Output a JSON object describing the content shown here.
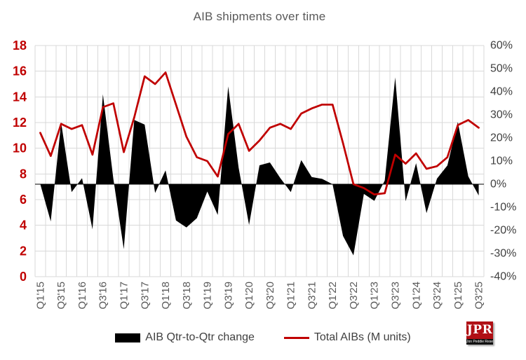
{
  "title": "AIB shipments over time",
  "legend": {
    "area_label": "AIB Qtr-to-Qtr change",
    "line_label": "Total AIBs (M units)"
  },
  "logo": {
    "text": "JPR",
    "subtext": "Jon Peddie Research"
  },
  "colors": {
    "line": "#c00000",
    "area": "#000000",
    "gridline": "#d9d9d9",
    "zero_axis": "#000000",
    "left_axis_text": "#c00000",
    "right_axis_text": "#404040",
    "x_axis_text": "#595959",
    "title_text": "#595959",
    "logo_red": "#b01015"
  },
  "chart_data": {
    "type": "combo",
    "title": "AIB shipments over time",
    "categories": [
      "Q1'15",
      "Q2'15",
      "Q3'15",
      "Q4'15",
      "Q1'16",
      "Q2'16",
      "Q3'16",
      "Q4'16",
      "Q1'17",
      "Q2'17",
      "Q3'17",
      "Q4'17",
      "Q1'18",
      "Q2'18",
      "Q3'18",
      "Q4'18",
      "Q1'19",
      "Q2'19",
      "Q3'19",
      "Q4'19",
      "Q1'20",
      "Q2'20",
      "Q3'20",
      "Q4'20",
      "Q1'21",
      "Q2'21",
      "Q3'21",
      "Q4'21",
      "Q1'22",
      "Q2'22",
      "Q3'22",
      "Q4'22",
      "Q1'23",
      "Q2'23",
      "Q3'23",
      "Q4'23",
      "Q1'24",
      "Q2'24",
      "Q3'24",
      "Q4'24",
      "Q1'25",
      "Q2'25",
      "Q3'25"
    ],
    "x_tick_labels": [
      "Q1'15",
      "Q3'15",
      "Q1'16",
      "Q3'16",
      "Q1'17",
      "Q3'17",
      "Q1'18",
      "Q3'18",
      "Q1'19",
      "Q3'19",
      "Q1'20",
      "Q3'20",
      "Q1'21",
      "Q3'21",
      "Q1'22",
      "Q3'22",
      "Q1'23",
      "Q3'23",
      "Q1'24",
      "Q3'24",
      "Q1'25",
      "Q3'25"
    ],
    "x_tick_every": 2,
    "series": [
      {
        "name": "AIB Qtr-to-Qtr change",
        "type": "area",
        "axis": "right",
        "unit": "%",
        "values": [
          0.0,
          -16.1,
          26.6,
          -3.4,
          2.6,
          -19.5,
          38.9,
          2.3,
          -28.1,
          27.8,
          25.8,
          -3.8,
          6.0,
          -15.7,
          -18.7,
          -14.7,
          -3.2,
          -13.3,
          42.3,
          7.2,
          -17.6,
          8.2,
          9.4,
          2.6,
          -3.4,
          10.4,
          3.1,
          2.3,
          0.0,
          -22.4,
          -30.8,
          -4.2,
          -7.2,
          1.6,
          46.2,
          -7.4,
          9.1,
          -12.5,
          2.4,
          8.1,
          26.9,
          3.4,
          -4.9
        ]
      },
      {
        "name": "Total AIBs (M units)",
        "type": "line",
        "axis": "left",
        "unit": "M units",
        "values": [
          11.2,
          9.4,
          11.9,
          11.5,
          11.8,
          9.5,
          13.2,
          13.5,
          9.7,
          12.4,
          15.6,
          15.0,
          15.9,
          13.4,
          10.9,
          9.3,
          9.0,
          7.8,
          11.1,
          11.9,
          9.8,
          10.6,
          11.6,
          11.9,
          11.5,
          12.7,
          13.1,
          13.4,
          13.4,
          10.4,
          7.2,
          6.9,
          6.4,
          6.5,
          9.5,
          8.8,
          9.6,
          8.4,
          8.6,
          9.3,
          11.8,
          12.2,
          11.6
        ]
      }
    ],
    "left_axis": {
      "min": 0,
      "max": 18,
      "step": 2,
      "ticks": [
        "0",
        "2",
        "4",
        "6",
        "8",
        "10",
        "12",
        "14",
        "16",
        "18"
      ]
    },
    "right_axis": {
      "min": -40,
      "max": 60,
      "step": 10,
      "ticks": [
        "60%",
        "50%",
        "40%",
        "30%",
        "20%",
        "10%",
        "0%",
        "-10%",
        "-20%",
        "-30%",
        "-40%"
      ]
    },
    "grid": true,
    "legend_position": "bottom"
  }
}
